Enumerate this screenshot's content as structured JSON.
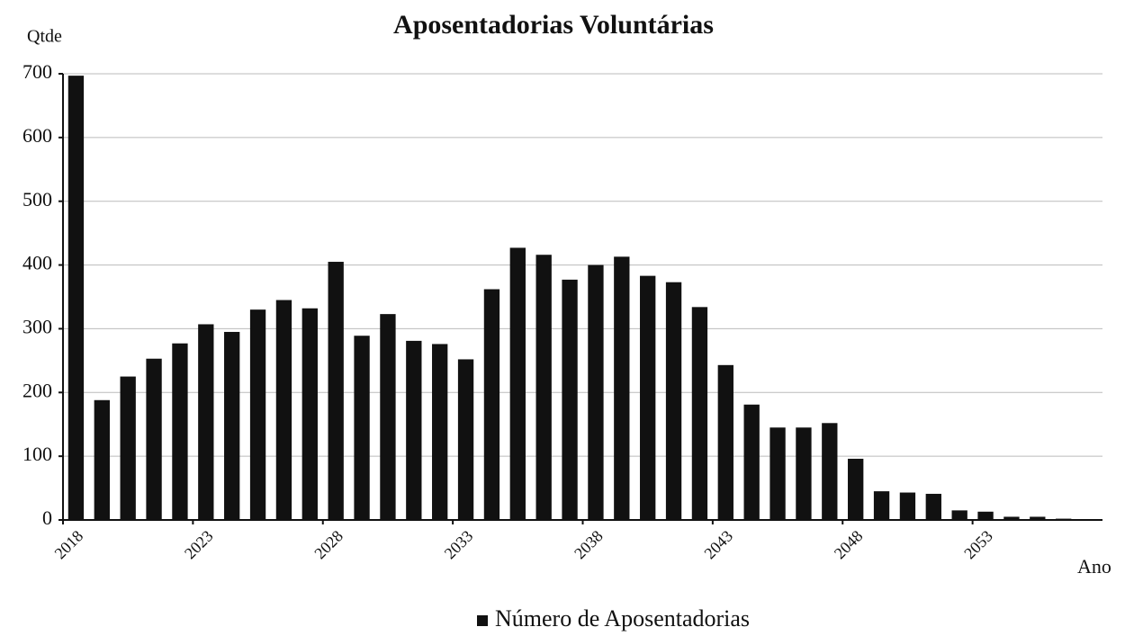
{
  "chart_data": {
    "type": "bar",
    "title": "Aposentadorias Voluntárias",
    "y_label": "Qtde",
    "x_label": "Ano",
    "categories": [
      "2018",
      null,
      null,
      null,
      null,
      "2023",
      null,
      null,
      null,
      null,
      "2028",
      null,
      null,
      null,
      null,
      "2033",
      null,
      null,
      null,
      null,
      "2038",
      null,
      null,
      null,
      null,
      "2043",
      null,
      null,
      null,
      null,
      "2048",
      null,
      null,
      null,
      null,
      "2053",
      null,
      null,
      null,
      null
    ],
    "series": [
      {
        "name": "Número de Aposentadorias",
        "color": "#111111",
        "values": [
          697,
          188,
          225,
          253,
          277,
          307,
          295,
          330,
          345,
          332,
          405,
          289,
          323,
          281,
          276,
          252,
          362,
          427,
          416,
          377,
          400,
          413,
          383,
          373,
          334,
          243,
          181,
          145,
          145,
          152,
          96,
          45,
          43,
          41,
          15,
          13,
          5,
          5,
          2,
          1
        ]
      }
    ],
    "ylim": [
      0,
      700
    ],
    "yticks": [
      0,
      100,
      200,
      300,
      400,
      500,
      600,
      700
    ],
    "grid": true,
    "legend": "bottom"
  }
}
